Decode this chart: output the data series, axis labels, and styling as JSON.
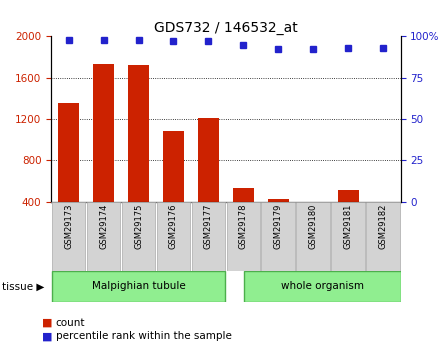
{
  "title": "GDS732 / 146532_at",
  "samples": [
    "GSM29173",
    "GSM29174",
    "GSM29175",
    "GSM29176",
    "GSM29177",
    "GSM29178",
    "GSM29179",
    "GSM29180",
    "GSM29181",
    "GSM29182"
  ],
  "counts": [
    1350,
    1730,
    1720,
    1080,
    1210,
    530,
    430,
    360,
    510,
    380
  ],
  "percentiles": [
    98,
    98,
    98,
    97,
    97,
    95,
    92,
    92,
    93,
    93
  ],
  "tissue_groups": [
    {
      "label": "Malpighian tubule",
      "start": 0,
      "end": 5
    },
    {
      "label": "whole organism",
      "start": 5,
      "end": 10
    }
  ],
  "tissue_label": "tissue",
  "bar_color": "#cc2200",
  "dot_color": "#2222cc",
  "ylim_left": [
    400,
    2000
  ],
  "ylim_right": [
    0,
    100
  ],
  "yticks_left": [
    400,
    800,
    1200,
    1600,
    2000
  ],
  "yticks_right": [
    0,
    25,
    50,
    75,
    100
  ],
  "grid_ticks": [
    800,
    1200,
    1600
  ],
  "legend_count_label": "count",
  "legend_pct_label": "percentile rank within the sample",
  "bg_color": "#ffffff",
  "sample_box_color": "#d3d3d3",
  "tissue_color": "#90ee90",
  "tissue_border_color": "#4caf4c"
}
